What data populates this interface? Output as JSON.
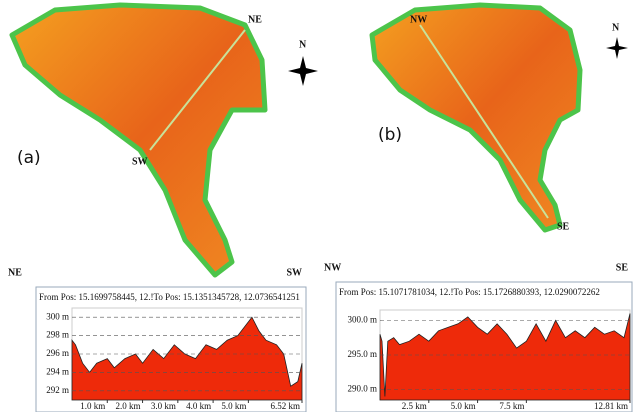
{
  "maps": [
    {
      "panel": "(a)",
      "end_a": "NE",
      "end_b": "SW",
      "north": "N"
    },
    {
      "panel": "(b)",
      "end_a": "NW",
      "end_b": "SE",
      "north": "N"
    }
  ],
  "chart_data": [
    {
      "type": "area",
      "left_label": "NE",
      "right_label": "SW",
      "title": "From Pos: 15.1699758445, 12.!To Pos: 15.1351345728, 12.0736541251",
      "color": "#ee2a0a",
      "x": [
        0,
        0.1,
        0.3,
        0.5,
        0.7,
        1.0,
        1.2,
        1.5,
        1.8,
        2.0,
        2.3,
        2.6,
        2.9,
        3.2,
        3.5,
        3.8,
        4.1,
        4.4,
        4.7,
        4.9,
        5.1,
        5.3,
        5.5,
        5.8,
        6.0,
        6.2,
        6.4,
        6.52
      ],
      "values": [
        297.5,
        297,
        295,
        294,
        295,
        295.5,
        294.5,
        295.5,
        296,
        295,
        296.5,
        295.5,
        297,
        296,
        295.5,
        297,
        296.5,
        297.5,
        298,
        299,
        300,
        298.5,
        297.5,
        297,
        296,
        292.5,
        293,
        295
      ],
      "xlim": [
        0,
        6.52
      ],
      "xticks": [
        {
          "value": 1,
          "label": "1.0 km"
        },
        {
          "value": 2,
          "label": "2.0 km"
        },
        {
          "value": 3,
          "label": "3.0 km"
        },
        {
          "value": 4,
          "label": "4.0 km"
        },
        {
          "value": 5,
          "label": "5.0 km"
        },
        {
          "value": 6.52,
          "label": "6.52 km"
        }
      ],
      "ylim": [
        291,
        301
      ],
      "yticks": [
        {
          "value": 292,
          "label": "292 m"
        },
        {
          "value": 294,
          "label": "294 m"
        },
        {
          "value": 296,
          "label": "296 m"
        },
        {
          "value": 298,
          "label": "298 m"
        },
        {
          "value": 300,
          "label": "300 m"
        }
      ],
      "grid": true
    },
    {
      "type": "area",
      "left_label": "NW",
      "right_label": "SE",
      "title": "From Pos: 15.1071781034, 12.!To Pos: 15.1726880393, 12.0290072262",
      "color": "#ee2a0a",
      "x": [
        0,
        0.1,
        0.25,
        0.4,
        0.7,
        1.0,
        1.5,
        2.0,
        2.5,
        3.0,
        3.5,
        4.0,
        4.5,
        5.0,
        5.5,
        6.0,
        6.5,
        7.0,
        7.5,
        8.0,
        8.5,
        9.0,
        9.5,
        10.0,
        10.5,
        11.0,
        11.5,
        12.0,
        12.5,
        12.81
      ],
      "values": [
        298,
        297,
        289,
        297,
        297.5,
        296.5,
        297,
        298,
        297,
        298.5,
        299,
        299.5,
        300.5,
        299,
        298,
        299.5,
        298,
        296,
        297,
        299.5,
        297,
        300,
        297.5,
        298.5,
        297.5,
        299,
        298,
        298.5,
        297.5,
        301
      ],
      "xlim": [
        0,
        12.81
      ],
      "xticks": [
        {
          "value": 2.5,
          "label": "2.5 km"
        },
        {
          "value": 5,
          "label": "5.0 km"
        },
        {
          "value": 7.5,
          "label": "7.5 km"
        },
        {
          "value": 12.81,
          "label": "12.81 km"
        }
      ],
      "ylim": [
        288.5,
        301.5
      ],
      "yticks": [
        {
          "value": 290,
          "label": "290.0 m"
        },
        {
          "value": 295,
          "label": "295.0 m"
        },
        {
          "value": 300,
          "label": "300.0 m"
        }
      ],
      "grid": true
    }
  ]
}
